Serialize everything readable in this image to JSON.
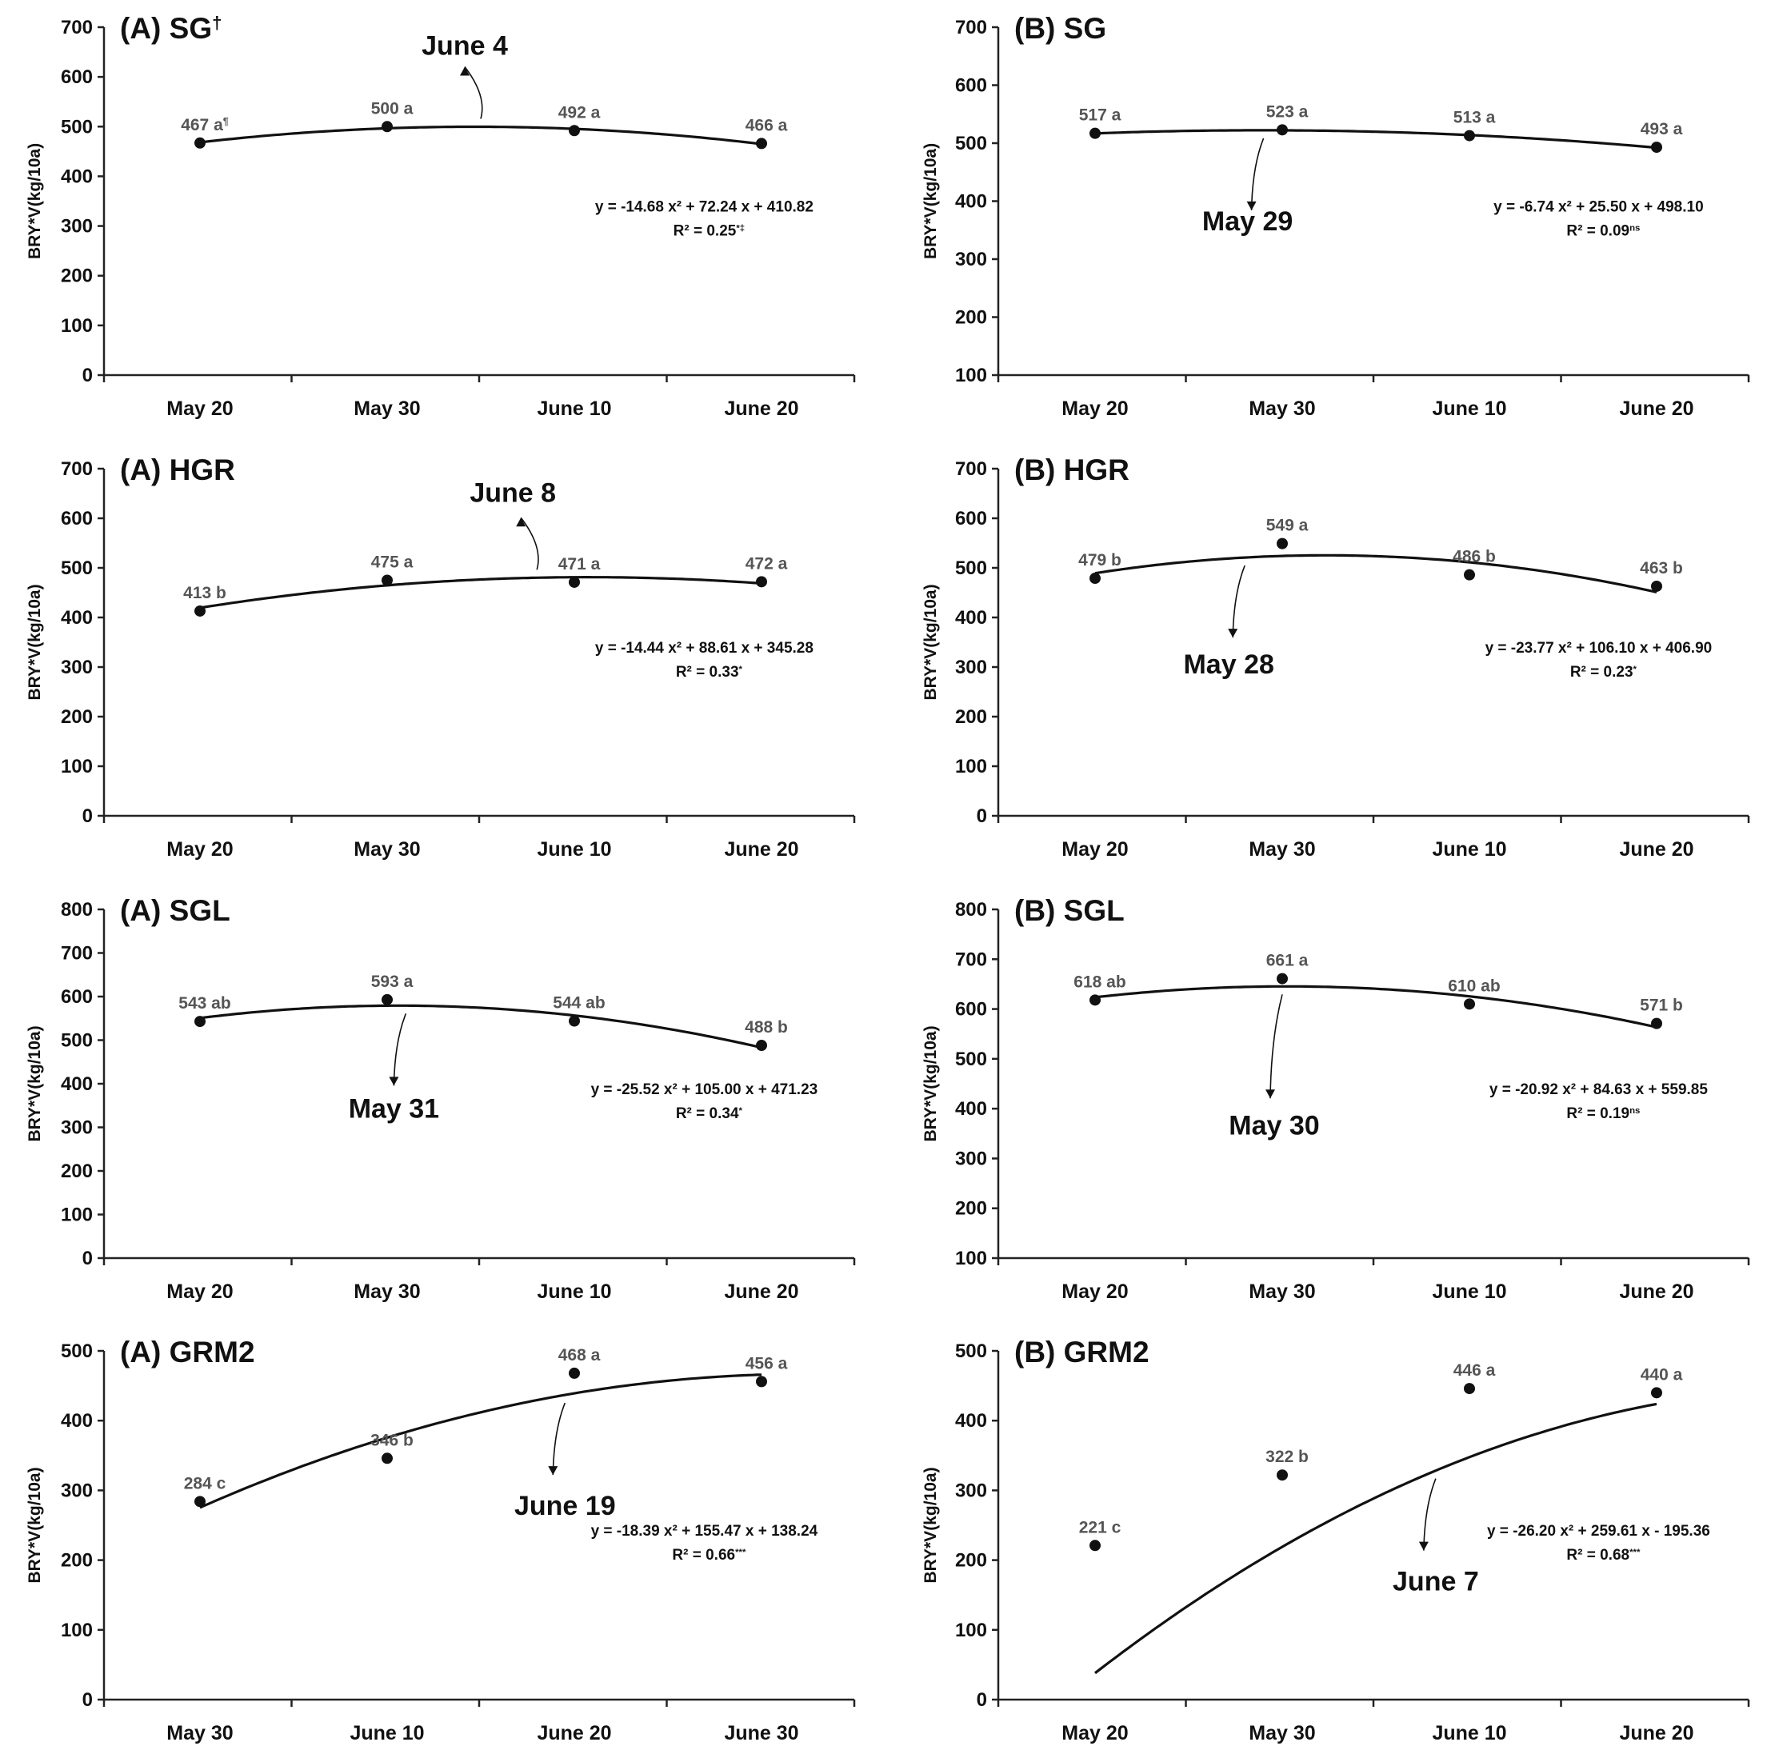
{
  "colors": {
    "axis": "#222222",
    "curve": "#111111",
    "point_label": "#555555"
  },
  "figure": {
    "y_axis_label": "BRY*V(kg/10a)"
  },
  "chart_data": [
    {
      "id": "A-SG",
      "type": "scatter",
      "title": "(A) SG",
      "title_sup": "†",
      "ylabel": "BRY*V(kg/10a)",
      "ylim": [
        0,
        700
      ],
      "ystep": 100,
      "categories": [
        "May 20",
        "May 30",
        "June 10",
        "June 20"
      ],
      "series": [
        {
          "name": "BRY*V",
          "values": [
            467,
            500,
            492,
            466
          ],
          "point_labels": [
            "467 a",
            "500 a",
            "492 a",
            "466 a"
          ],
          "point_label_sups": [
            "¶",
            "",
            "",
            ""
          ]
        }
      ],
      "fit": {
        "type": "quadratic",
        "a": -14.68,
        "b": 72.24,
        "c": 410.82,
        "x_range": [
          1,
          4
        ]
      },
      "equation_text": "y = -14.68 x² + 72.24 x + 410.82",
      "r2_text": "R² = 0.25",
      "r2_sup": "*‡",
      "optimum": {
        "label": "June 4",
        "x": 2.5,
        "arrow": "up"
      }
    },
    {
      "id": "B-SG",
      "type": "scatter",
      "title": "(B) SG",
      "title_sup": "",
      "ylabel": "BRY*V(kg/10a)",
      "ylim": [
        100,
        700
      ],
      "ystep": 100,
      "categories": [
        "May 20",
        "May 30",
        "June 10",
        "June 20"
      ],
      "series": [
        {
          "name": "BRY*V",
          "values": [
            517,
            523,
            513,
            493
          ],
          "point_labels": [
            "517 a",
            "523 a",
            "513 a",
            "493 a"
          ],
          "point_label_sups": [
            "",
            "",
            "",
            ""
          ]
        }
      ],
      "fit": {
        "type": "quadratic",
        "a": -6.74,
        "b": 25.5,
        "c": 498.1,
        "x_range": [
          1,
          4
        ]
      },
      "equation_text": "y = -6.74 x² + 25.50 x + 498.10",
      "r2_text": "R² = 0.09",
      "r2_sup": "ns",
      "optimum": {
        "label": "May 29",
        "x": 1.9,
        "arrow": "down"
      }
    },
    {
      "id": "A-HGR",
      "type": "scatter",
      "title": "(A) HGR",
      "title_sup": "",
      "ylabel": "BRY*V(kg/10a)",
      "ylim": [
        0,
        700
      ],
      "ystep": 100,
      "categories": [
        "May 20",
        "May 30",
        "June 10",
        "June 20"
      ],
      "series": [
        {
          "name": "BRY*V",
          "values": [
            413,
            475,
            471,
            472
          ],
          "point_labels": [
            "413 b",
            "475 a",
            "471 a",
            "472 a"
          ],
          "point_label_sups": [
            "",
            "",
            "",
            ""
          ]
        }
      ],
      "fit": {
        "type": "quadratic",
        "a": -14.44,
        "b": 88.61,
        "c": 345.28,
        "x_range": [
          1,
          4
        ]
      },
      "equation_text": "y = -14.44 x² + 88.61 x + 345.28",
      "r2_text": "R² = 0.33",
      "r2_sup": "*",
      "optimum": {
        "label": "June 8",
        "x": 2.8,
        "arrow": "up"
      }
    },
    {
      "id": "B-HGR",
      "type": "scatter",
      "title": "(B) HGR",
      "title_sup": "",
      "ylabel": "BRY*V(kg/10a)",
      "ylim": [
        0,
        700
      ],
      "ystep": 100,
      "categories": [
        "May 20",
        "May 30",
        "June 10",
        "June 20"
      ],
      "series": [
        {
          "name": "BRY*V",
          "values": [
            479,
            549,
            486,
            463
          ],
          "point_labels": [
            "479 b",
            "549 a",
            "486 b",
            "463 b"
          ],
          "point_label_sups": [
            "",
            "",
            "",
            ""
          ]
        }
      ],
      "fit": {
        "type": "quadratic",
        "a": -23.77,
        "b": 106.1,
        "c": 406.9,
        "x_range": [
          1,
          4
        ]
      },
      "equation_text": "y = -23.77 x² + 106.10 x + 406.90",
      "r2_text": "R² = 0.23",
      "r2_sup": "*",
      "optimum": {
        "label": "May 28",
        "x": 1.8,
        "arrow": "down"
      }
    },
    {
      "id": "A-SGL",
      "type": "scatter",
      "title": "(A) SGL",
      "title_sup": "",
      "ylabel": "BRY*V(kg/10a)",
      "ylim": [
        0,
        800
      ],
      "ystep": 100,
      "categories": [
        "May 20",
        "May 30",
        "June 10",
        "June 20"
      ],
      "series": [
        {
          "name": "BRY*V",
          "values": [
            543,
            593,
            544,
            488
          ],
          "point_labels": [
            "543 ab",
            "593 a",
            "544 ab",
            "488 b"
          ],
          "point_label_sups": [
            "",
            "",
            "",
            ""
          ]
        }
      ],
      "fit": {
        "type": "quadratic",
        "a": -25.52,
        "b": 105.0,
        "c": 471.23,
        "x_range": [
          1,
          4
        ]
      },
      "equation_text": "y = -25.52 x² + 105.00 x + 471.23",
      "r2_text": "R² = 0.34",
      "r2_sup": "*",
      "optimum": {
        "label": "May 31",
        "x": 2.1,
        "arrow": "down"
      }
    },
    {
      "id": "B-SGL",
      "type": "scatter",
      "title": "(B) SGL",
      "title_sup": "",
      "ylabel": "BRY*V(kg/10a)",
      "ylim": [
        100,
        800
      ],
      "ystep": 100,
      "categories": [
        "May 20",
        "May 30",
        "June 10",
        "June 20"
      ],
      "series": [
        {
          "name": "BRY*V",
          "values": [
            618,
            661,
            610,
            571
          ],
          "point_labels": [
            "618 ab",
            "661 a",
            "610 ab",
            "571 b"
          ],
          "point_label_sups": [
            "",
            "",
            "",
            ""
          ]
        }
      ],
      "fit": {
        "type": "quadratic",
        "a": -20.92,
        "b": 84.63,
        "c": 559.85,
        "x_range": [
          1,
          4
        ]
      },
      "equation_text": "y = -20.92 x² + 84.63 x + 559.85",
      "r2_text": "R² = 0.19",
      "r2_sup": "ns",
      "optimum": {
        "label": "May 30",
        "x": 2.0,
        "arrow": "down"
      }
    },
    {
      "id": "A-GRM2",
      "type": "scatter",
      "title": "(A) GRM2",
      "title_sup": "",
      "ylabel": "BRY*V(kg/10a)",
      "ylim": [
        0,
        500
      ],
      "ystep": 100,
      "categories": [
        "May 30",
        "June 10",
        "June 20",
        "June 30"
      ],
      "series": [
        {
          "name": "BRY*V",
          "values": [
            284,
            346,
            468,
            456
          ],
          "point_labels": [
            "284 c",
            "346 b",
            "468 a",
            "456 a"
          ],
          "point_label_sups": [
            "",
            "",
            "",
            ""
          ]
        }
      ],
      "fit": {
        "type": "quadratic",
        "a": -18.39,
        "b": 155.47,
        "c": 138.24,
        "x_range": [
          1,
          4
        ]
      },
      "equation_text": "y = -18.39 x² + 155.47 x + 138.24",
      "r2_text": "R² = 0.66",
      "r2_sup": "***",
      "optimum": {
        "label": "June 19",
        "x": 2.95,
        "arrow": "down"
      }
    },
    {
      "id": "B-GRM2",
      "type": "scatter",
      "title": "(B) GRM2",
      "title_sup": "",
      "ylabel": "BRY*V(kg/10a)",
      "ylim": [
        0,
        500
      ],
      "ystep": 100,
      "categories": [
        "May 20",
        "May 30",
        "June 10",
        "June 20"
      ],
      "series": [
        {
          "name": "BRY*V",
          "values": [
            221,
            322,
            446,
            440
          ],
          "point_labels": [
            "221 c",
            "322 b",
            "446 a",
            "440 a"
          ],
          "point_label_sups": [
            "",
            "",
            "",
            ""
          ]
        }
      ],
      "fit": {
        "type": "quadratic",
        "a": -26.2,
        "b": 259.61,
        "c": -195.36,
        "x_range": [
          1,
          4
        ]
      },
      "equation_text": "y = -26.20 x² + 259.61 x - 195.36",
      "r2_text": "R² = 0.68",
      "r2_sup": "***",
      "optimum": {
        "label": "June 7",
        "x": 2.82,
        "arrow": "down"
      }
    }
  ]
}
